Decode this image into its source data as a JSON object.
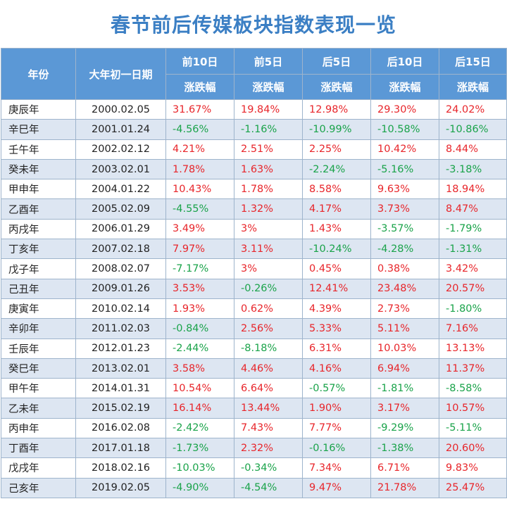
{
  "title": "春节前后传媒板块指数表现一览",
  "headers": {
    "year": "年份",
    "date": "大年初一日期",
    "periods": [
      "前10日",
      "前5日",
      "后5日",
      "后10日",
      "后15日"
    ],
    "metric": "涨跌幅"
  },
  "colors": {
    "header_bg": "#5b98d6",
    "title": "#3b7fc4",
    "positive": "#e8262b",
    "negative": "#1aa34a",
    "stripe": "#dde6f2"
  },
  "rows": [
    {
      "year": "庚辰年",
      "date": "2000.02.05",
      "values": [
        "31.67%",
        "19.84%",
        "12.98%",
        "29.30%",
        "24.02%"
      ]
    },
    {
      "year": "辛巳年",
      "date": "2001.01.24",
      "values": [
        "-4.56%",
        "-1.16%",
        "-10.99%",
        "-10.58%",
        "-10.86%"
      ]
    },
    {
      "year": "壬午年",
      "date": "2002.02.12",
      "values": [
        "4.21%",
        "2.51%",
        "2.25%",
        "10.42%",
        "8.44%"
      ]
    },
    {
      "year": "癸未年",
      "date": "2003.02.01",
      "values": [
        "1.78%",
        "1.63%",
        "-2.24%",
        "-5.16%",
        "-3.18%"
      ]
    },
    {
      "year": "甲申年",
      "date": "2004.01.22",
      "values": [
        "10.43%",
        "1.78%",
        "8.58%",
        "9.63%",
        "18.94%"
      ]
    },
    {
      "year": "乙酉年",
      "date": "2005.02.09",
      "values": [
        "-4.55%",
        "1.32%",
        "4.17%",
        "3.73%",
        "8.47%"
      ]
    },
    {
      "year": "丙戌年",
      "date": "2006.01.29",
      "values": [
        "3.49%",
        "3%",
        "1.43%",
        "-3.57%",
        "-1.79%"
      ]
    },
    {
      "year": "丁亥年",
      "date": "2007.02.18",
      "values": [
        "7.97%",
        "3.11%",
        "-10.24%",
        "-4.28%",
        "-1.31%"
      ]
    },
    {
      "year": "戊子年",
      "date": "2008.02.07",
      "values": [
        "-7.17%",
        "3%",
        "0.45%",
        "0.38%",
        "3.42%"
      ]
    },
    {
      "year": "己丑年",
      "date": "2009.01.26",
      "values": [
        "3.53%",
        "-0.26%",
        "12.41%",
        "23.48%",
        "20.57%"
      ]
    },
    {
      "year": "庚寅年",
      "date": "2010.02.14",
      "values": [
        "1.93%",
        "0.62%",
        "4.39%",
        "2.73%",
        "-1.80%"
      ]
    },
    {
      "year": "辛卯年",
      "date": "2011.02.03",
      "values": [
        "-0.84%",
        "2.56%",
        "5.33%",
        "5.11%",
        "7.16%"
      ]
    },
    {
      "year": "壬辰年",
      "date": "2012.01.23",
      "values": [
        "-2.44%",
        "-8.18%",
        "6.31%",
        "10.03%",
        "13.13%"
      ]
    },
    {
      "year": "癸巳年",
      "date": "2013.02.01",
      "values": [
        "3.58%",
        "4.46%",
        "4.16%",
        "6.94%",
        "11.37%"
      ]
    },
    {
      "year": "甲午年",
      "date": "2014.01.31",
      "values": [
        "10.54%",
        "6.64%",
        "-0.57%",
        "-1.81%",
        "-8.58%"
      ]
    },
    {
      "year": "乙未年",
      "date": "2015.02.19",
      "values": [
        "16.14%",
        "13.44%",
        "1.90%",
        "3.17%",
        "10.57%"
      ]
    },
    {
      "year": "丙申年",
      "date": "2016.02.08",
      "values": [
        "-2.42%",
        "7.43%",
        "7.77%",
        "-9.29%",
        "-5.11%"
      ]
    },
    {
      "year": "丁酉年",
      "date": "2017.01.18",
      "values": [
        "-1.73%",
        "2.32%",
        "-0.16%",
        "-1.38%",
        "20.60%"
      ]
    },
    {
      "year": "戊戌年",
      "date": "2018.02.16",
      "values": [
        "-10.03%",
        "-0.34%",
        "7.34%",
        "6.71%",
        "9.83%"
      ]
    },
    {
      "year": "己亥年",
      "date": "2019.02.05",
      "values": [
        "-4.90%",
        "-4.54%",
        "9.47%",
        "21.78%",
        "25.47%"
      ]
    }
  ]
}
